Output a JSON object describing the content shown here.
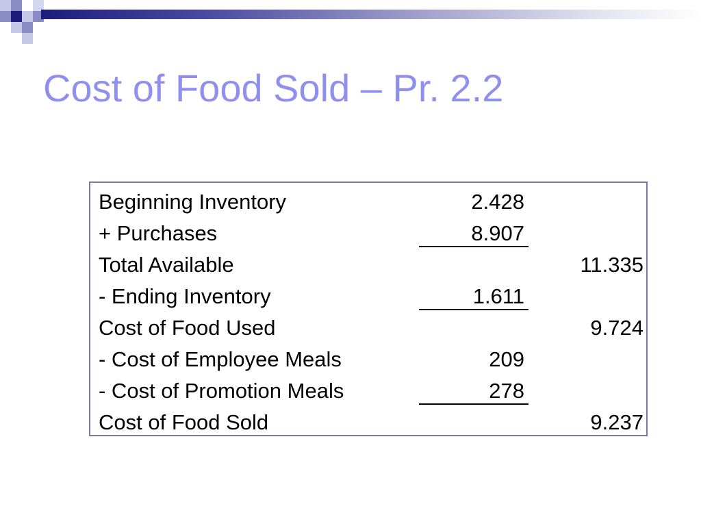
{
  "slide": {
    "title": "Cost of Food Sold – Pr. 2.2"
  },
  "table": {
    "rows": [
      {
        "label": "Beginning Inventory",
        "mid": "2.428",
        "right": ""
      },
      {
        "label": "+ Purchases",
        "mid": "8.907",
        "right": ""
      },
      {
        "label": "Total Available",
        "mid": "",
        "right": "11.335"
      },
      {
        "label": "- Ending Inventory",
        "mid": "1.611",
        "right": ""
      },
      {
        "label": "Cost of Food Used",
        "mid": "",
        "right": "9.724"
      },
      {
        "label": "- Cost of Employee Meals",
        "mid": "209",
        "right": ""
      },
      {
        "label": "- Cost of Promotion Meals",
        "mid": "278",
        "right": ""
      },
      {
        "label": "Cost of Food Sold",
        "mid": "",
        "right": "9.237"
      }
    ]
  },
  "colors": {
    "title": "#8f8fee",
    "table_border": "#7a7aa8",
    "accent_dark": "#1c1c7c"
  }
}
